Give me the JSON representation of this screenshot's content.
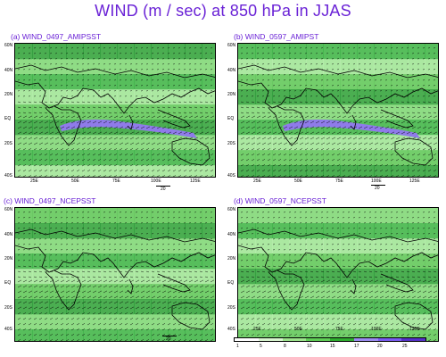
{
  "title": "WIND (m / sec) at 850 hPa in JJAS",
  "panels": [
    {
      "label": "(a)  WIND_0497_AMIPSST"
    },
    {
      "label": "(b)  WIND_0597_AMIPST"
    },
    {
      "label": "(c)  WIND_0497_NCEPSST"
    },
    {
      "label": "(d)  WIND_0597_NCEPSST"
    }
  ],
  "lat_labels": [
    "60N",
    "40N",
    "20N",
    "EQ",
    "20S",
    "40S"
  ],
  "lon_labels": [
    "25E",
    "50E",
    "75E",
    "100E",
    "125E"
  ],
  "ref_vector_label": "20",
  "colorbar": {
    "ticks": [
      "1",
      "5",
      "8",
      "10",
      "15",
      "17",
      "20",
      "25"
    ],
    "colors": [
      "#ffffff",
      "#d9f5d0",
      "#9de48c",
      "#5fce55",
      "#2fae2f",
      "#9b8cf0",
      "#7a5cf0",
      "#5532c8"
    ]
  },
  "colors": {
    "title": "#6a22d6",
    "land_outline": "#000000",
    "strong_wind": "#8f7bea"
  }
}
